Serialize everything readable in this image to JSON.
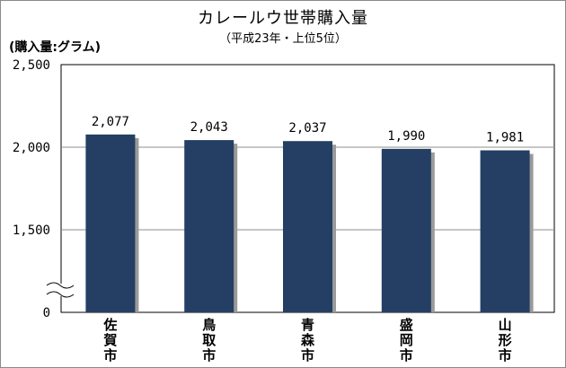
{
  "chart_data": {
    "type": "bar",
    "title": "カレールウ世帯購入量",
    "subtitle": "（平成23年・上位5位）",
    "unit_label": "(購入量:グラム)",
    "categories": [
      "佐賀市",
      "鳥取市",
      "青森市",
      "盛岡市",
      "山形市"
    ],
    "values": [
      2077,
      2043,
      2037,
      1990,
      1981
    ],
    "value_labels": [
      "2,077",
      "2,043",
      "2,037",
      "1,990",
      "1,981"
    ],
    "y_ticks": [
      {
        "value": 2500,
        "label": "2,500"
      },
      {
        "value": 2000,
        "label": "2,000"
      },
      {
        "value": 1500,
        "label": "1,500"
      },
      {
        "value": 0,
        "label": "0"
      }
    ],
    "axis_break": true,
    "grid": true,
    "bar_color": "#243f63",
    "bar_shadow_color": "#9a9a9a"
  }
}
